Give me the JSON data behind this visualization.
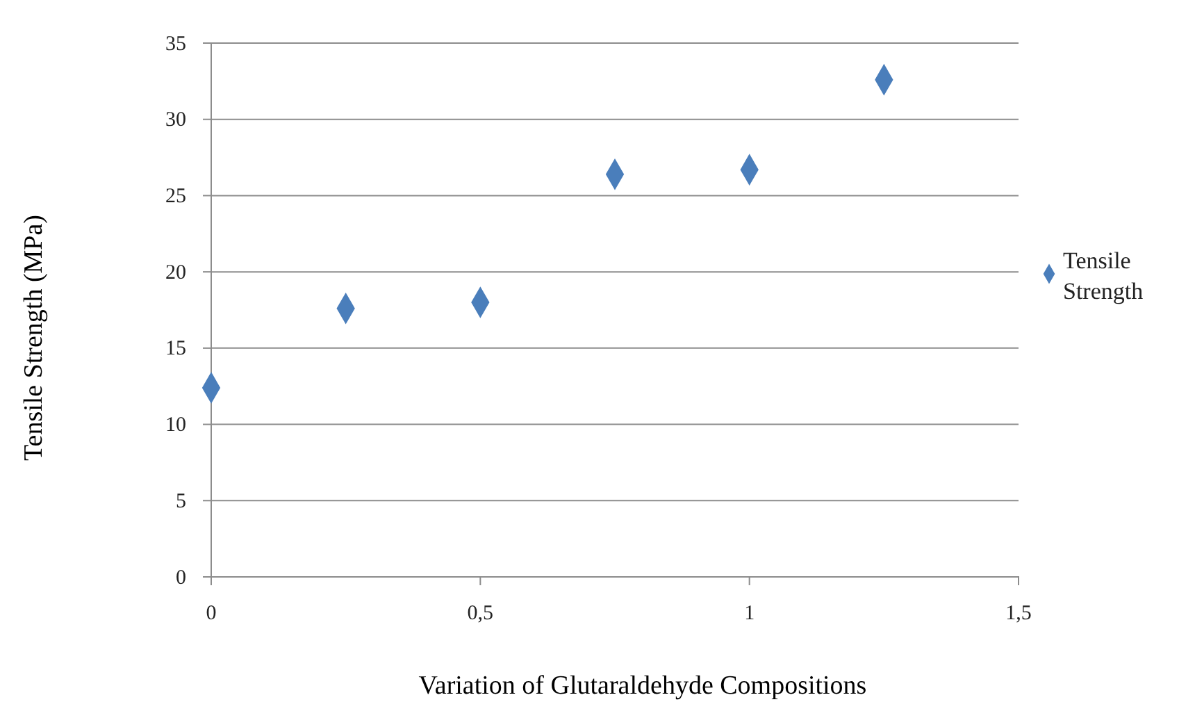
{
  "chart_data": {
    "type": "scatter",
    "xlabel": "Variation of Glutaraldehyde Compositions",
    "ylabel": "Tensile Strength (MPa)",
    "x": [
      0,
      0.25,
      0.5,
      0.75,
      1,
      1.25
    ],
    "series": [
      {
        "name": "Tensile Strength",
        "color": "#4a7ebb",
        "values": [
          12.4,
          17.6,
          18.0,
          26.4,
          26.7,
          32.6
        ]
      }
    ],
    "xlim": [
      0,
      1.5
    ],
    "xticks": [
      0,
      {
        "value": 0.5,
        "label": "0,5"
      },
      1,
      {
        "value": 1.5,
        "label": "1,5"
      }
    ],
    "ylim": [
      0,
      35
    ],
    "yticks": [
      0,
      5,
      10,
      15,
      20,
      25,
      30,
      35
    ],
    "grid": "y",
    "legend": "right",
    "marker": "diamond"
  }
}
